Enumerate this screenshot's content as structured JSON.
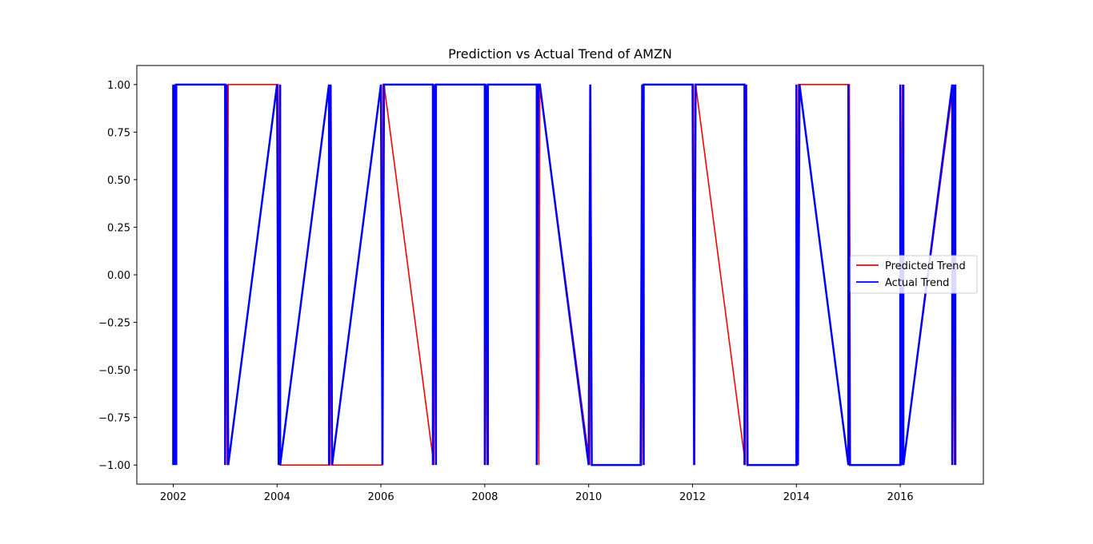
{
  "chart_data": {
    "type": "line",
    "title": "Prediction vs Actual Trend of AMZN",
    "xlabel": "",
    "ylabel": "",
    "xlim": [
      2001.3,
      2017.6
    ],
    "ylim": [
      -1.1,
      1.1
    ],
    "x_ticks": [
      2002,
      2004,
      2006,
      2008,
      2010,
      2012,
      2014,
      2016
    ],
    "y_ticks": [
      1.0,
      0.75,
      0.5,
      0.25,
      0.0,
      -0.25,
      -0.5,
      -0.75,
      -1.0
    ],
    "y_tick_labels": [
      "1.00",
      "0.75",
      "0.50",
      "0.25",
      "0.00",
      "−0.25",
      "−0.50",
      "−0.75",
      "−1.00"
    ],
    "legend_position": "center-right",
    "grid": false,
    "series": [
      {
        "name": "Predicted Trend",
        "color": "#ff0000",
        "points": [
          [
            2002.02,
            -1
          ],
          [
            2002.02,
            1
          ],
          [
            2002.04,
            -1
          ],
          [
            2002.04,
            1
          ],
          [
            2003.02,
            1
          ],
          [
            2003.04,
            -1
          ],
          [
            2003.06,
            1
          ],
          [
            2004.02,
            1
          ],
          [
            2004.06,
            -1
          ],
          [
            2005.02,
            -1
          ],
          [
            2005.04,
            1
          ],
          [
            2005.06,
            -1
          ],
          [
            2006.02,
            -1
          ],
          [
            2006.04,
            1
          ],
          [
            2006.06,
            1
          ],
          [
            2007.02,
            -1
          ],
          [
            2007.04,
            1
          ],
          [
            2008.02,
            1
          ],
          [
            2008.04,
            -1
          ],
          [
            2008.06,
            1
          ],
          [
            2009.02,
            1
          ],
          [
            2009.04,
            -1
          ],
          [
            2009.06,
            1
          ],
          [
            2010.02,
            -1
          ],
          [
            2010.04,
            1
          ],
          [
            2010.06,
            -1
          ],
          [
            2011.02,
            -1
          ],
          [
            2011.04,
            1
          ],
          [
            2012.02,
            1
          ],
          [
            2012.04,
            -1
          ],
          [
            2012.06,
            1
          ],
          [
            2013.02,
            -1
          ],
          [
            2013.04,
            1
          ],
          [
            2013.06,
            -1
          ],
          [
            2014.02,
            -1
          ],
          [
            2014.04,
            1
          ],
          [
            2015.02,
            1
          ],
          [
            2015.04,
            -1
          ],
          [
            2016.02,
            -1
          ],
          [
            2016.04,
            1
          ],
          [
            2016.06,
            -1
          ],
          [
            2017.02,
            1
          ],
          [
            2017.04,
            -1
          ],
          [
            2017.06,
            1
          ]
        ]
      },
      {
        "name": "Actual Trend",
        "color": "#0000ff",
        "points": [
          [
            2002.0,
            -1
          ],
          [
            2002.0,
            1
          ],
          [
            2002.03,
            -1
          ],
          [
            2002.03,
            1
          ],
          [
            2002.06,
            -1
          ],
          [
            2002.06,
            1
          ],
          [
            2003.0,
            1
          ],
          [
            2003.0,
            -1
          ],
          [
            2003.03,
            1
          ],
          [
            2003.06,
            -1
          ],
          [
            2003.06,
            -1
          ],
          [
            2004.0,
            1
          ],
          [
            2004.03,
            -1
          ],
          [
            2004.06,
            1
          ],
          [
            2004.06,
            -1
          ],
          [
            2005.0,
            1
          ],
          [
            2005.0,
            -1
          ],
          [
            2005.03,
            1
          ],
          [
            2005.06,
            -1
          ],
          [
            2006.0,
            1
          ],
          [
            2006.03,
            -1
          ],
          [
            2006.06,
            1
          ],
          [
            2007.0,
            1
          ],
          [
            2007.0,
            -1
          ],
          [
            2007.03,
            1
          ],
          [
            2007.06,
            -1
          ],
          [
            2007.06,
            1
          ],
          [
            2008.0,
            1
          ],
          [
            2008.0,
            -1
          ],
          [
            2008.03,
            1
          ],
          [
            2008.06,
            -1
          ],
          [
            2008.06,
            1
          ],
          [
            2009.0,
            1
          ],
          [
            2009.0,
            -1
          ],
          [
            2009.03,
            1
          ],
          [
            2009.06,
            1
          ],
          [
            2010.0,
            -1
          ],
          [
            2010.03,
            1
          ],
          [
            2010.06,
            -1
          ],
          [
            2011.0,
            -1
          ],
          [
            2011.03,
            1
          ],
          [
            2011.06,
            -1
          ],
          [
            2011.06,
            1
          ],
          [
            2012.0,
            1
          ],
          [
            2012.03,
            -1
          ],
          [
            2012.06,
            1
          ],
          [
            2013.0,
            1
          ],
          [
            2013.0,
            -1
          ],
          [
            2013.03,
            1
          ],
          [
            2013.06,
            -1
          ],
          [
            2014.0,
            -1
          ],
          [
            2014.0,
            1
          ],
          [
            2014.03,
            -1
          ],
          [
            2014.06,
            1
          ],
          [
            2015.0,
            -1
          ],
          [
            2015.0,
            1
          ],
          [
            2015.03,
            -1
          ],
          [
            2015.06,
            -1
          ],
          [
            2016.0,
            -1
          ],
          [
            2016.0,
            1
          ],
          [
            2016.03,
            -1
          ],
          [
            2016.06,
            1
          ],
          [
            2016.06,
            -1
          ],
          [
            2017.0,
            1
          ],
          [
            2017.0,
            -1
          ],
          [
            2017.03,
            1
          ],
          [
            2017.06,
            -1
          ],
          [
            2017.06,
            1
          ]
        ]
      }
    ]
  }
}
